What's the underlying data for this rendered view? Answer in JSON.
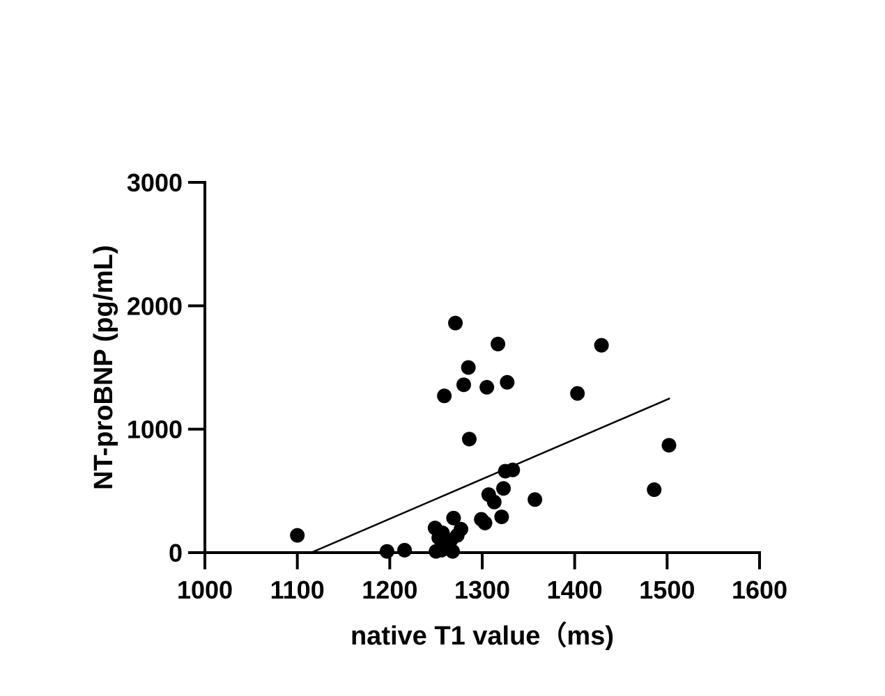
{
  "chart_data": {
    "type": "scatter",
    "xlabel": "native T1 value（ms)",
    "ylabel": "NT-proBNP (pg/mL)",
    "xlim": [
      1000,
      1600
    ],
    "ylim": [
      0,
      3000
    ],
    "x_ticks": [
      1000,
      1100,
      1200,
      1300,
      1400,
      1500,
      1600
    ],
    "y_ticks": [
      0,
      1000,
      2000,
      3000
    ],
    "grid": false,
    "marker_color": "#000000",
    "points": [
      {
        "x": 1100,
        "y": 140
      },
      {
        "x": 1197,
        "y": 10
      },
      {
        "x": 1216,
        "y": 20
      },
      {
        "x": 1249,
        "y": 200
      },
      {
        "x": 1250,
        "y": 10
      },
      {
        "x": 1253,
        "y": 120
      },
      {
        "x": 1256,
        "y": 20
      },
      {
        "x": 1257,
        "y": 160
      },
      {
        "x": 1259,
        "y": 1270
      },
      {
        "x": 1260,
        "y": 60
      },
      {
        "x": 1266,
        "y": 100
      },
      {
        "x": 1268,
        "y": 10
      },
      {
        "x": 1269,
        "y": 280
      },
      {
        "x": 1271,
        "y": 1860
      },
      {
        "x": 1273,
        "y": 140
      },
      {
        "x": 1277,
        "y": 190
      },
      {
        "x": 1280,
        "y": 1360
      },
      {
        "x": 1285,
        "y": 1500
      },
      {
        "x": 1286,
        "y": 920
      },
      {
        "x": 1299,
        "y": 270
      },
      {
        "x": 1303,
        "y": 240
      },
      {
        "x": 1305,
        "y": 1340
      },
      {
        "x": 1307,
        "y": 470
      },
      {
        "x": 1313,
        "y": 410
      },
      {
        "x": 1317,
        "y": 1690
      },
      {
        "x": 1321,
        "y": 290
      },
      {
        "x": 1323,
        "y": 520
      },
      {
        "x": 1325,
        "y": 660
      },
      {
        "x": 1327,
        "y": 1380
      },
      {
        "x": 1333,
        "y": 670
      },
      {
        "x": 1357,
        "y": 430
      },
      {
        "x": 1403,
        "y": 1290
      },
      {
        "x": 1429,
        "y": 1680
      },
      {
        "x": 1486,
        "y": 510
      },
      {
        "x": 1502,
        "y": 870
      }
    ],
    "regression_line": {
      "x": [
        1115,
        1503
      ],
      "y": [
        0,
        1250
      ]
    }
  }
}
